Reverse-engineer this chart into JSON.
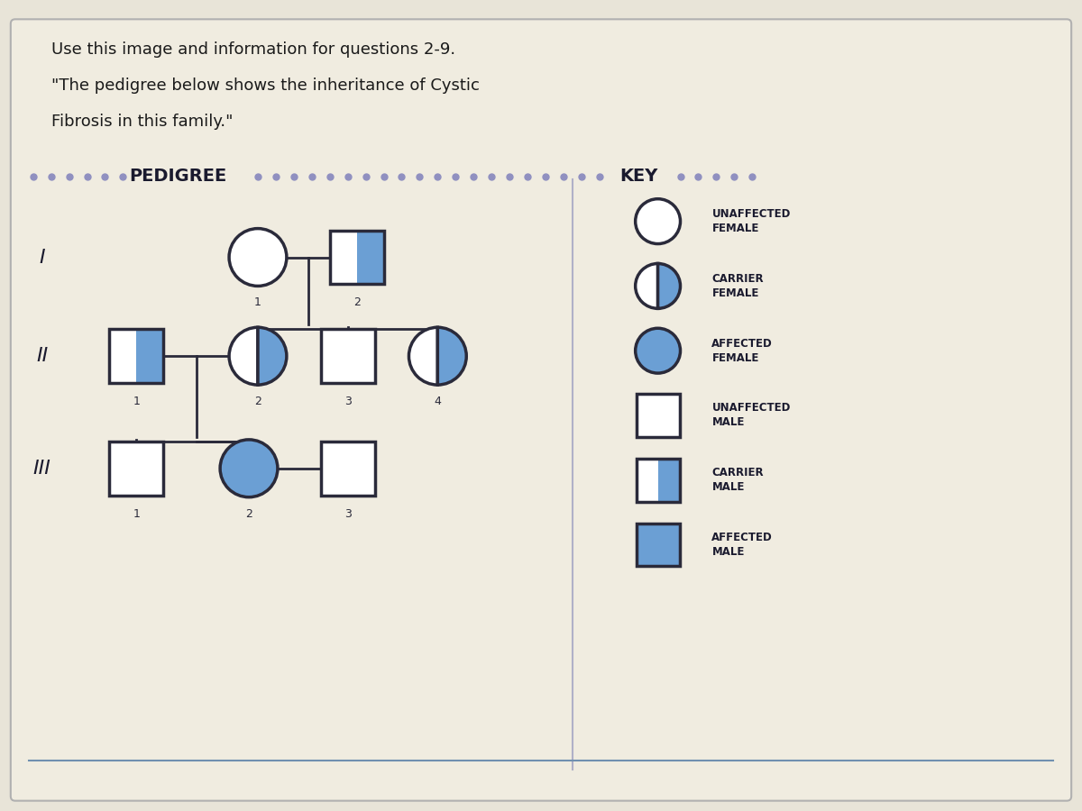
{
  "title_line1": "Use this image and information for questions 2-9.",
  "title_line2": "\"The pedigree below shows the inheritance of Cystic",
  "title_line3": "Fibrosis in this family.\"",
  "bg_color": "#e8e4d8",
  "box_bg": "#f5f2ea",
  "border_color": "#2a2a3a",
  "blue_color": "#6b9fd4",
  "blue_dark": "#5588c0",
  "dot_color": "#9090c0",
  "pedigree_header": "PEDIGREE",
  "key_header": "KEY",
  "key_labels": [
    "UNAFFECTED\nFEMALE",
    "CARRIER\nFEMALE",
    "AFFECTED\nFEMALE",
    "UNAFFECTED\nMALE",
    "CARRIER\nMALE",
    "AFFECTED\nMALE"
  ],
  "roman_labels": [
    "I",
    "II",
    "III"
  ],
  "generation_numbers": [
    [
      "1",
      "2"
    ],
    [
      "1",
      "2",
      "3",
      "4"
    ],
    [
      "1",
      "2",
      "3"
    ]
  ]
}
